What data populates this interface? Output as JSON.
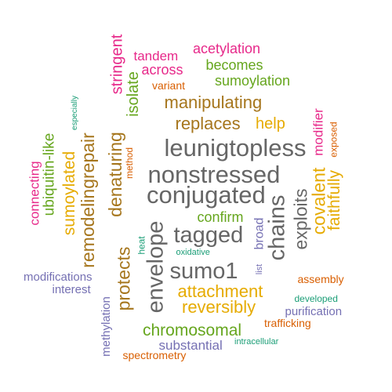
{
  "colors": {
    "green": "#1b9e77",
    "orange": "#d95f02",
    "purple": "#7570b3",
    "magenta": "#e7298a",
    "lime": "#66a61e",
    "gold": "#e6ab02",
    "brown": "#a6761d",
    "gray": "#666666"
  },
  "words": [
    {
      "text": "leunigtopless",
      "color": "gray"
    },
    {
      "text": "nonstressed",
      "color": "gray"
    },
    {
      "text": "conjugated",
      "color": "gray"
    },
    {
      "text": "tagged",
      "color": "gray"
    },
    {
      "text": "sumo1",
      "color": "gray"
    },
    {
      "text": "envelope",
      "color": "gray"
    },
    {
      "text": "chains",
      "color": "gray"
    },
    {
      "text": "manipulating",
      "color": "brown"
    },
    {
      "text": "replaces",
      "color": "brown"
    },
    {
      "text": "help",
      "color": "gold"
    },
    {
      "text": "protects",
      "color": "brown"
    },
    {
      "text": "denaturing",
      "color": "brown"
    },
    {
      "text": "remodelingrepair",
      "color": "brown"
    },
    {
      "text": "stringent",
      "color": "magenta"
    },
    {
      "text": "isolate",
      "color": "lime"
    },
    {
      "text": "method",
      "color": "orange"
    },
    {
      "text": "sumoylated",
      "color": "gold"
    },
    {
      "text": "ubiquitin-like",
      "color": "lime"
    },
    {
      "text": "connecting",
      "color": "magenta"
    },
    {
      "text": "especially",
      "color": "green"
    },
    {
      "text": "tandem",
      "color": "magenta"
    },
    {
      "text": "acetylation",
      "color": "magenta"
    },
    {
      "text": "across",
      "color": "magenta"
    },
    {
      "text": "becomes",
      "color": "lime"
    },
    {
      "text": "variant",
      "color": "orange"
    },
    {
      "text": "sumoylation",
      "color": "lime"
    },
    {
      "text": "exploits",
      "color": "gray"
    },
    {
      "text": "covalent",
      "color": "gold"
    },
    {
      "text": "faithfully",
      "color": "gold"
    },
    {
      "text": "modifier",
      "color": "magenta"
    },
    {
      "text": "exposed",
      "color": "orange"
    },
    {
      "text": "confirm",
      "color": "lime"
    },
    {
      "text": "broad",
      "color": "purple"
    },
    {
      "text": "list",
      "color": "purple"
    },
    {
      "text": "heat",
      "color": "green"
    },
    {
      "text": "oxidative",
      "color": "green"
    },
    {
      "text": "attachment",
      "color": "gold"
    },
    {
      "text": "reversibly",
      "color": "gold"
    },
    {
      "text": "chromosomal",
      "color": "lime"
    },
    {
      "text": "substantial",
      "color": "purple"
    },
    {
      "text": "intracellular",
      "color": "green"
    },
    {
      "text": "spectrometry",
      "color": "orange"
    },
    {
      "text": "trafficking",
      "color": "orange"
    },
    {
      "text": "purification",
      "color": "purple"
    },
    {
      "text": "developed",
      "color": "green"
    },
    {
      "text": "assembly",
      "color": "orange"
    },
    {
      "text": "modifications",
      "color": "purple"
    },
    {
      "text": "interest",
      "color": "purple"
    },
    {
      "text": "methylation",
      "color": "purple"
    }
  ]
}
